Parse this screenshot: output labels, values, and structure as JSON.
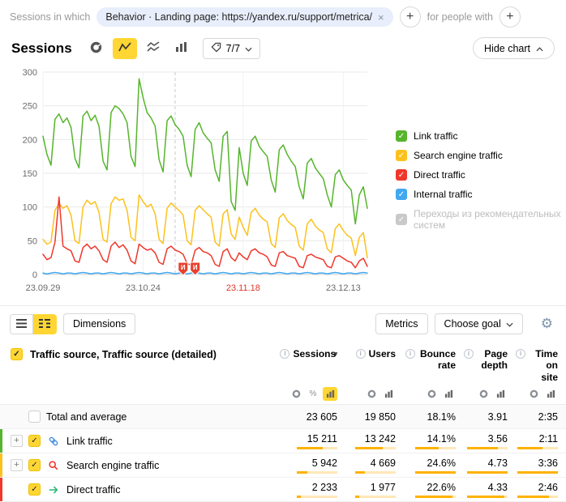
{
  "icons": {
    "close": "×",
    "plus": "+",
    "check": "✓",
    "gear": "⚙",
    "sort_desc": "▾",
    "info": "i",
    "percent": "%"
  },
  "colors": {
    "accent_yellow": "#ffd633",
    "green": "#56b52c",
    "yellow": "#fcc11c",
    "red": "#f0372b",
    "blue": "#41a8f0",
    "bar_fill": "#ffb200",
    "bar_track": "#ffe8b8"
  },
  "filter_bar": {
    "label_left": "Sessions in which",
    "chip": "Behavior · Landing page: https://yandex.ru/support/metrica/",
    "label_right": "for people with"
  },
  "chart_header": {
    "title": "Sessions",
    "segments_count": "7/7",
    "hide_chart": "Hide chart"
  },
  "legend": [
    {
      "label": "Link traffic",
      "color": "#56b52c",
      "checked": true,
      "disabled": false
    },
    {
      "label": "Search engine traffic",
      "color": "#fcc11c",
      "checked": true,
      "disabled": false
    },
    {
      "label": "Direct traffic",
      "color": "#f0372b",
      "checked": true,
      "disabled": false
    },
    {
      "label": "Internal traffic",
      "color": "#41a8f0",
      "checked": true,
      "disabled": false
    },
    {
      "label": "Переходы из рекомендательных систем",
      "color": "#c9c9c9",
      "checked": true,
      "disabled": true
    }
  ],
  "chart_data": {
    "type": "line",
    "title": "Sessions",
    "ylim": [
      0,
      300
    ],
    "yticks": [
      0,
      50,
      100,
      150,
      200,
      250,
      300
    ],
    "days": 82,
    "xticks": [
      {
        "label": "23.09.29",
        "day": 0,
        "highlight": false
      },
      {
        "label": "23.10.24",
        "day": 25,
        "highlight": false
      },
      {
        "label": "23.11.18",
        "day": 50,
        "highlight": true
      },
      {
        "label": "23.12.13",
        "day": 75,
        "highlight": false
      }
    ],
    "dashed_day": 33,
    "markers": [
      {
        "day": 35,
        "letter": "И"
      },
      {
        "day": 38,
        "letter": "И"
      }
    ],
    "series": [
      {
        "name": "Link traffic",
        "color": "#56b52c",
        "values": [
          205,
          178,
          162,
          230,
          238,
          225,
          232,
          218,
          172,
          158,
          235,
          242,
          228,
          236,
          220,
          168,
          155,
          240,
          250,
          246,
          238,
          225,
          175,
          160,
          290,
          262,
          240,
          232,
          220,
          170,
          152,
          228,
          235,
          222,
          215,
          205,
          162,
          145,
          215,
          225,
          210,
          202,
          195,
          155,
          138,
          205,
          212,
          108,
          95,
          188,
          150,
          132,
          198,
          205,
          190,
          182,
          175,
          140,
          122,
          185,
          192,
          178,
          168,
          160,
          130,
          112,
          165,
          172,
          158,
          150,
          142,
          118,
          100,
          148,
          155,
          140,
          132,
          125,
          75,
          118,
          130,
          98
        ]
      },
      {
        "name": "Search engine traffic",
        "color": "#fcc11c",
        "values": [
          52,
          45,
          48,
          95,
          105,
          98,
          102,
          88,
          50,
          46,
          100,
          110,
          104,
          108,
          92,
          52,
          48,
          105,
          115,
          110,
          112,
          95,
          55,
          50,
          118,
          108,
          100,
          104,
          90,
          52,
          46,
          98,
          106,
          100,
          95,
          88,
          50,
          44,
          95,
          102,
          96,
          90,
          85,
          48,
          42,
          90,
          96,
          60,
          52,
          85,
          70,
          58,
          92,
          98,
          88,
          82,
          78,
          46,
          40,
          84,
          90,
          80,
          74,
          70,
          42,
          36,
          75,
          82,
          72,
          66,
          62,
          38,
          32,
          68,
          75,
          65,
          58,
          54,
          28,
          55,
          62,
          25
        ]
      },
      {
        "name": "Direct traffic",
        "color": "#f0372b",
        "values": [
          30,
          22,
          25,
          48,
          115,
          42,
          38,
          35,
          20,
          18,
          40,
          45,
          38,
          42,
          35,
          22,
          18,
          42,
          48,
          40,
          44,
          36,
          20,
          16,
          45,
          40,
          36,
          38,
          32,
          18,
          15,
          38,
          42,
          36,
          34,
          30,
          16,
          14,
          36,
          40,
          34,
          32,
          28,
          15,
          12,
          34,
          38,
          25,
          20,
          32,
          26,
          22,
          35,
          38,
          32,
          30,
          26,
          14,
          12,
          32,
          34,
          28,
          26,
          24,
          12,
          10,
          28,
          30,
          26,
          24,
          22,
          12,
          10,
          26,
          28,
          24,
          20,
          18,
          10,
          20,
          24,
          12
        ]
      },
      {
        "name": "Internal traffic",
        "color": "#41a8f0",
        "values": [
          2,
          1,
          2,
          3,
          2,
          1,
          2,
          2,
          1,
          2,
          3,
          2,
          1,
          2,
          2,
          1,
          2,
          3,
          2,
          1,
          2,
          2,
          1,
          2,
          3,
          2,
          1,
          2,
          2,
          1,
          2,
          3,
          2,
          1,
          2,
          2,
          1,
          2,
          3,
          2,
          1,
          2,
          2,
          1,
          2,
          3,
          2,
          1,
          2,
          2,
          1,
          2,
          3,
          2,
          1,
          2,
          2,
          1,
          2,
          3,
          2,
          1,
          2,
          2,
          1,
          2,
          3,
          2,
          1,
          2,
          2,
          1,
          2,
          3,
          2,
          1,
          2,
          2,
          1,
          2,
          3,
          2
        ]
      }
    ]
  },
  "toolbar": {
    "dimensions": "Dimensions",
    "metrics": "Metrics",
    "choose_goal": "Choose goal"
  },
  "table": {
    "dimension_title": "Traffic source, Traffic source (detailed)",
    "columns": [
      {
        "label": "Sessions",
        "sorted": true,
        "mini_icons": [
          "donut",
          "percent",
          "bars"
        ],
        "active_icon": "bars"
      },
      {
        "label": "Users",
        "sorted": false,
        "mini_icons": [
          "donut",
          "bars"
        ],
        "active_icon": ""
      },
      {
        "label": "Bounce rate",
        "sorted": false,
        "mini_icons": [
          "donut",
          "bars"
        ],
        "active_icon": ""
      },
      {
        "label": "Page depth",
        "sorted": false,
        "mini_icons": [
          "donut",
          "bars"
        ],
        "active_icon": ""
      },
      {
        "label": "Time on site",
        "sorted": false,
        "mini_icons": [
          "donut",
          "bars"
        ],
        "active_icon": ""
      }
    ],
    "rows": [
      {
        "label": "Total and average",
        "total": true,
        "checked": false,
        "stripe": "",
        "icon": "",
        "expandable": false,
        "cells": [
          {
            "text": "23 605"
          },
          {
            "text": "19 850"
          },
          {
            "text": "18.1%"
          },
          {
            "text": "3.91"
          },
          {
            "text": "2:35"
          }
        ]
      },
      {
        "label": "Link traffic",
        "total": false,
        "checked": true,
        "stripe": "#56b52c",
        "icon": "link",
        "expandable": true,
        "cells": [
          {
            "text": "15 211",
            "bar": 0.64
          },
          {
            "text": "13 242",
            "bar": 0.67
          },
          {
            "text": "14.1%",
            "bar": 0.57
          },
          {
            "text": "3.56",
            "bar": 0.75
          },
          {
            "text": "2:11",
            "bar": 0.61
          }
        ]
      },
      {
        "label": "Search engine traffic",
        "total": false,
        "checked": true,
        "stripe": "#fcc11c",
        "icon": "search",
        "expandable": true,
        "cells": [
          {
            "text": "5 942",
            "bar": 0.25
          },
          {
            "text": "4 669",
            "bar": 0.24
          },
          {
            "text": "24.6%",
            "bar": 1
          },
          {
            "text": "4.73",
            "bar": 1
          },
          {
            "text": "3:36",
            "bar": 1
          }
        ]
      },
      {
        "label": "Direct traffic",
        "total": false,
        "checked": true,
        "stripe": "#f0372b",
        "icon": "arrow",
        "expandable": false,
        "cells": [
          {
            "text": "2 233",
            "bar": 0.09
          },
          {
            "text": "1 977",
            "bar": 0.1
          },
          {
            "text": "22.6%",
            "bar": 0.92
          },
          {
            "text": "4.33",
            "bar": 0.92
          },
          {
            "text": "2:46",
            "bar": 0.77
          }
        ]
      }
    ]
  }
}
